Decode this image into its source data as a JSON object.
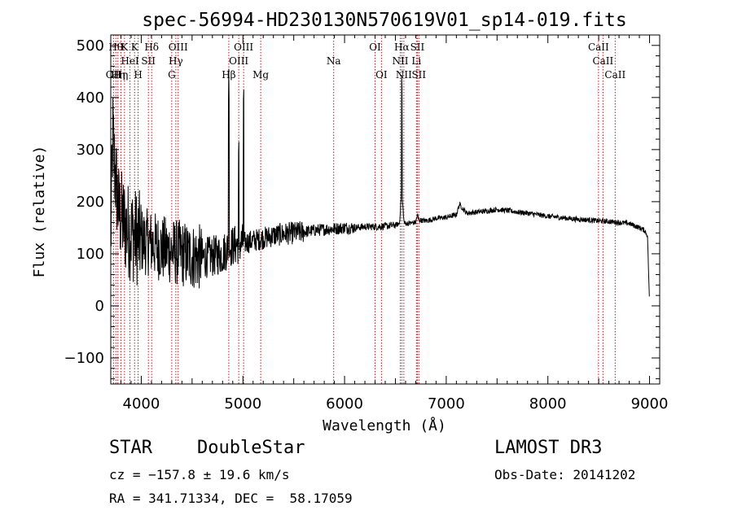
{
  "chart_data": {
    "type": "line",
    "title": "spec-56994-HD230130N570619V01_sp14-019.fits",
    "xlabel": "Wavelength (Å)",
    "ylabel": "Flux (relative)",
    "xlim": [
      3700,
      9100
    ],
    "ylim": [
      -150,
      520
    ],
    "xticks": [
      4000,
      5000,
      6000,
      7000,
      8000,
      9000
    ],
    "yticks": [
      -100,
      0,
      100,
      200,
      300,
      400,
      500
    ],
    "spectrum_anchors": {
      "x": [
        3700,
        3720,
        3740,
        3780,
        3850,
        3900,
        3970,
        4000,
        4100,
        4200,
        4300,
        4400,
        4500,
        4600,
        4700,
        4800,
        4850,
        4900,
        4950,
        5000,
        5100,
        5200,
        5300,
        5400,
        5500,
        5600,
        5700,
        5800,
        5900,
        6000,
        6100,
        6200,
        6300,
        6400,
        6500,
        6540,
        6555,
        6562,
        6570,
        6585,
        6600,
        6700,
        6716,
        6730,
        6800,
        6900,
        7000,
        7100,
        7130,
        7200,
        7300,
        7400,
        7500,
        7600,
        7700,
        7800,
        7900,
        8000,
        8100,
        8200,
        8300,
        8400,
        8500,
        8600,
        8700,
        8800,
        8900,
        8950,
        8980,
        9000
      ],
      "y": [
        120,
        330,
        260,
        180,
        150,
        140,
        130,
        125,
        120,
        110,
        105,
        100,
        95,
        92,
        95,
        100,
        110,
        115,
        118,
        120,
        125,
        130,
        135,
        138,
        140,
        142,
        145,
        147,
        148,
        150,
        150,
        152,
        152,
        153,
        155,
        158,
        200,
        240,
        200,
        160,
        158,
        160,
        175,
        165,
        163,
        168,
        170,
        175,
        195,
        178,
        180,
        182,
        185,
        183,
        180,
        178,
        175,
        172,
        170,
        168,
        166,
        165,
        163,
        162,
        160,
        158,
        150,
        145,
        135,
        5
      ]
    },
    "emission_spikes": [
      {
        "x": 4861,
        "y": 455,
        "name": "Hβ"
      },
      {
        "x": 4959,
        "y": 335,
        "name": "OIII"
      },
      {
        "x": 5007,
        "y": 435,
        "name": "OIII"
      },
      {
        "x": 6563,
        "y": 460,
        "name": "Hα"
      }
    ],
    "line_markers": [
      {
        "x": 3727,
        "label": "OII",
        "row": 3
      },
      {
        "x": 3750,
        "label": "Hθ",
        "row": 1
      },
      {
        "x": 3770,
        "label": "Hη",
        "row": 3
      },
      {
        "x": 3800,
        "label": "Hη",
        "row": 3
      },
      {
        "x": 3835,
        "label": "K",
        "row": 1
      },
      {
        "x": 3889,
        "label": "HeI",
        "row": 2
      },
      {
        "x": 3934,
        "label": "K",
        "row": 1
      },
      {
        "x": 3969,
        "label": "H",
        "row": 3
      },
      {
        "x": 4070,
        "label": "SII",
        "row": 2
      },
      {
        "x": 4102,
        "label": "Hδ",
        "row": 1
      },
      {
        "x": 4300,
        "label": "G",
        "row": 3
      },
      {
        "x": 4340,
        "label": "Hγ",
        "row": 2
      },
      {
        "x": 4363,
        "label": "OIII",
        "row": 1
      },
      {
        "x": 4861,
        "label": "Hβ",
        "row": 3
      },
      {
        "x": 4959,
        "label": "OIII",
        "row": 2
      },
      {
        "x": 5007,
        "label": "OIII",
        "row": 1
      },
      {
        "x": 5175,
        "label": "Mg",
        "row": 3
      },
      {
        "x": 5893,
        "label": "Na",
        "row": 2
      },
      {
        "x": 6300,
        "label": "OI",
        "row": 1
      },
      {
        "x": 6363,
        "label": "OI",
        "row": 3
      },
      {
        "x": 6548,
        "label": "NII",
        "row": 2
      },
      {
        "x": 6563,
        "label": "Hα",
        "row": 1
      },
      {
        "x": 6583,
        "label": "NII",
        "row": 3
      },
      {
        "x": 6707,
        "label": "Li",
        "row": 2
      },
      {
        "x": 6716,
        "label": "SII",
        "row": 1
      },
      {
        "x": 6731,
        "label": "SII",
        "row": 3
      },
      {
        "x": 8498,
        "label": "CaII",
        "row": 1
      },
      {
        "x": 8542,
        "label": "CaII",
        "row": 2
      },
      {
        "x": 8662,
        "label": "CaII",
        "row": 3
      }
    ]
  },
  "info": {
    "object_class": "STAR",
    "subclass": "DoubleStar",
    "survey": "LAMOST DR3",
    "cz": "cz = −157.8 ± 19.6 km/s",
    "obs_date": "Obs-Date: 20141202",
    "coords": "RA = 341.71334, DEC =  58.17059"
  }
}
